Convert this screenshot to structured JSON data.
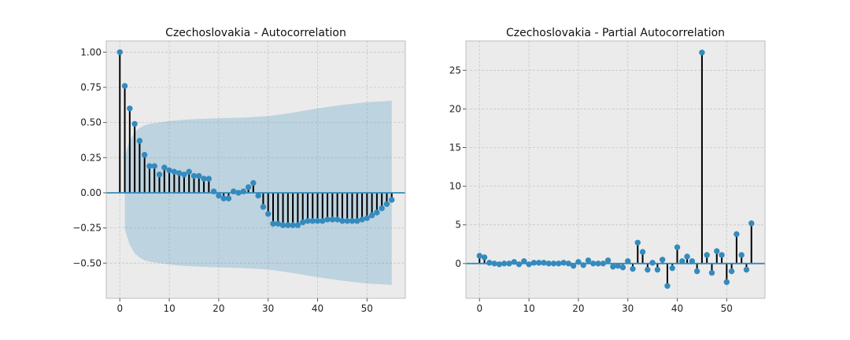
{
  "chart_data": [
    {
      "type": "stem",
      "title": "Czechoslovakia - Autocorrelation",
      "xlabel": "",
      "ylabel": "",
      "xlim": [
        -2.75,
        57.75
      ],
      "ylim": [
        -0.75,
        1.08
      ],
      "x_ticks": [
        0,
        10,
        20,
        30,
        40,
        50
      ],
      "y_ticks": [
        -0.5,
        -0.25,
        0.0,
        0.25,
        0.5,
        0.75,
        1.0
      ],
      "y_tick_labels": [
        "−0.50",
        "−0.25",
        "0.00",
        "0.25",
        "0.50",
        "0.75",
        "1.00"
      ],
      "grid": true,
      "series": [
        {
          "x": [
            0,
            1,
            2,
            3,
            4,
            5,
            6,
            7,
            8,
            9,
            10,
            11,
            12,
            13,
            14,
            15,
            16,
            17,
            18,
            19,
            20,
            21,
            22,
            23,
            24,
            25,
            26,
            27,
            28,
            29,
            30,
            31,
            32,
            33,
            34,
            35,
            36,
            37,
            38,
            39,
            40,
            41,
            42,
            43,
            44,
            45,
            46,
            47,
            48,
            49,
            50,
            51,
            52,
            53,
            54,
            55
          ],
          "values": [
            1.0,
            0.76,
            0.6,
            0.49,
            0.37,
            0.27,
            0.19,
            0.19,
            0.13,
            0.18,
            0.16,
            0.15,
            0.14,
            0.13,
            0.15,
            0.12,
            0.12,
            0.1,
            0.1,
            0.01,
            -0.02,
            -0.04,
            -0.04,
            0.01,
            0.0,
            0.01,
            0.04,
            0.07,
            -0.02,
            -0.1,
            -0.15,
            -0.22,
            -0.22,
            -0.23,
            -0.23,
            -0.23,
            -0.23,
            -0.21,
            -0.2,
            -0.2,
            -0.2,
            -0.2,
            -0.19,
            -0.19,
            -0.19,
            -0.2,
            -0.2,
            -0.2,
            -0.2,
            -0.19,
            -0.18,
            -0.16,
            -0.14,
            -0.11,
            -0.08,
            -0.05
          ]
        }
      ],
      "confidence_band": {
        "x": [
          1,
          2,
          3,
          4,
          5,
          6,
          8,
          10,
          13,
          16,
          20,
          25,
          30,
          35,
          40,
          45,
          50,
          53,
          55
        ],
        "upper": [
          0.26,
          0.37,
          0.43,
          0.46,
          0.48,
          0.49,
          0.5,
          0.51,
          0.52,
          0.525,
          0.53,
          0.535,
          0.545,
          0.57,
          0.6,
          0.625,
          0.645,
          0.65,
          0.655
        ],
        "lower": [
          -0.26,
          -0.37,
          -0.43,
          -0.46,
          -0.48,
          -0.49,
          -0.5,
          -0.51,
          -0.52,
          -0.525,
          -0.53,
          -0.535,
          -0.545,
          -0.57,
          -0.6,
          -0.625,
          -0.645,
          -0.65,
          -0.655
        ]
      }
    },
    {
      "type": "stem",
      "title": "Czechoslovakia - Partial Autocorrelation",
      "xlabel": "",
      "ylabel": "",
      "xlim": [
        -2.75,
        57.75
      ],
      "ylim": [
        -4.5,
        28.8
      ],
      "x_ticks": [
        0,
        10,
        20,
        30,
        40,
        50
      ],
      "y_ticks": [
        0,
        5,
        10,
        15,
        20,
        25
      ],
      "y_tick_labels": [
        "0",
        "5",
        "10",
        "15",
        "20",
        "25"
      ],
      "grid": true,
      "series": [
        {
          "x": [
            0,
            1,
            2,
            3,
            4,
            5,
            6,
            7,
            8,
            9,
            10,
            11,
            12,
            13,
            14,
            15,
            16,
            17,
            18,
            19,
            20,
            21,
            22,
            23,
            24,
            25,
            26,
            27,
            28,
            29,
            30,
            31,
            32,
            33,
            34,
            35,
            36,
            37,
            38,
            39,
            40,
            41,
            42,
            43,
            44,
            45,
            46,
            47,
            48,
            49,
            50,
            51,
            52,
            53,
            54,
            55
          ],
          "values": [
            1.0,
            0.8,
            0.1,
            0.0,
            -0.1,
            0.0,
            0.0,
            0.2,
            -0.1,
            0.3,
            -0.1,
            0.1,
            0.1,
            0.1,
            0.0,
            0.0,
            0.0,
            0.1,
            0.0,
            -0.3,
            0.2,
            -0.2,
            0.4,
            0.0,
            0.0,
            0.0,
            0.4,
            -0.4,
            -0.3,
            -0.5,
            0.3,
            -0.7,
            2.7,
            1.5,
            -0.8,
            0.1,
            -0.8,
            0.5,
            -2.9,
            -0.6,
            2.1,
            0.3,
            0.9,
            0.3,
            -1.0,
            27.3,
            1.1,
            -1.2,
            1.6,
            1.1,
            -2.4,
            -1.0,
            3.8,
            1.1,
            -0.8,
            5.2
          ]
        }
      ]
    }
  ]
}
